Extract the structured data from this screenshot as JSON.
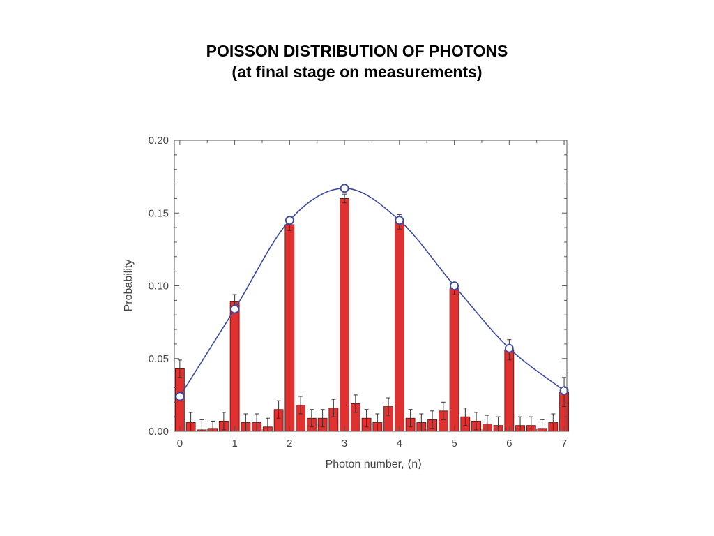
{
  "slide": {
    "title_line1": "POISSON DISTRIBUTION OF PHOTONS",
    "title_line2": "(at final stage on measurements)"
  },
  "chart_data": {
    "type": "bar",
    "xlabel": "Photon number, ⟨n⟩",
    "ylabel": "Probability",
    "xlim": [
      -0.1,
      7.05
    ],
    "ylim": [
      0,
      0.2
    ],
    "x_ticks": [
      {
        "value": 0,
        "label": "0"
      },
      {
        "value": 1,
        "label": "1"
      },
      {
        "value": 2,
        "label": "2"
      },
      {
        "value": 3,
        "label": "3"
      },
      {
        "value": 4,
        "label": "4"
      },
      {
        "value": 5,
        "label": "5"
      },
      {
        "value": 6,
        "label": "6"
      },
      {
        "value": 7,
        "label": "7"
      }
    ],
    "y_ticks": [
      {
        "value": 0,
        "label": "0.00"
      },
      {
        "value": 0.05,
        "label": "0.05"
      },
      {
        "value": 0.1,
        "label": "0.10"
      },
      {
        "value": 0.15,
        "label": "0.15"
      },
      {
        "value": 0.2,
        "label": "0.20"
      }
    ],
    "bar_color": "#e03030",
    "curve_color": "#3a4aa0",
    "series": [
      {
        "type": "bar",
        "x": [
          0,
          0.2,
          0.4,
          0.6,
          0.8,
          1,
          1.2,
          1.4,
          1.6,
          1.8,
          2,
          2.2,
          2.4,
          2.6,
          2.8,
          3,
          3.2,
          3.4,
          3.6,
          3.8,
          4,
          4.2,
          4.4,
          4.6,
          4.8,
          5,
          5.2,
          5.4,
          5.6,
          5.8,
          6,
          6.2,
          6.4,
          6.6,
          6.8,
          7
        ],
        "values": [
          0.043,
          0.006,
          0.001,
          0.002,
          0.007,
          0.089,
          0.006,
          0.006,
          0.003,
          0.015,
          0.142,
          0.018,
          0.009,
          0.009,
          0.016,
          0.16,
          0.019,
          0.009,
          0.006,
          0.017,
          0.144,
          0.009,
          0.006,
          0.008,
          0.014,
          0.098,
          0.01,
          0.007,
          0.005,
          0.004,
          0.056,
          0.004,
          0.004,
          0.002,
          0.006,
          0.027
        ],
        "errors": [
          0.006,
          0.007,
          0.007,
          0.005,
          0.006,
          0.005,
          0.006,
          0.006,
          0.006,
          0.006,
          0.004,
          0.006,
          0.006,
          0.006,
          0.006,
          0.003,
          0.006,
          0.006,
          0.006,
          0.006,
          0.005,
          0.006,
          0.006,
          0.006,
          0.006,
          0.004,
          0.006,
          0.006,
          0.006,
          0.006,
          0.007,
          0.006,
          0.006,
          0.006,
          0.006,
          0.01
        ]
      },
      {
        "type": "scatter",
        "marker": "open-circle",
        "x": [
          0,
          1,
          2,
          3,
          4,
          5,
          6,
          7
        ],
        "values": [
          0.024,
          0.084,
          0.145,
          0.167,
          0.145,
          0.1,
          0.057,
          0.028
        ]
      },
      {
        "type": "line",
        "smooth": true,
        "x": [
          0,
          1,
          2,
          3,
          4,
          5,
          6,
          7
        ],
        "values": [
          0.024,
          0.084,
          0.145,
          0.167,
          0.145,
          0.1,
          0.057,
          0.028
        ]
      }
    ]
  }
}
